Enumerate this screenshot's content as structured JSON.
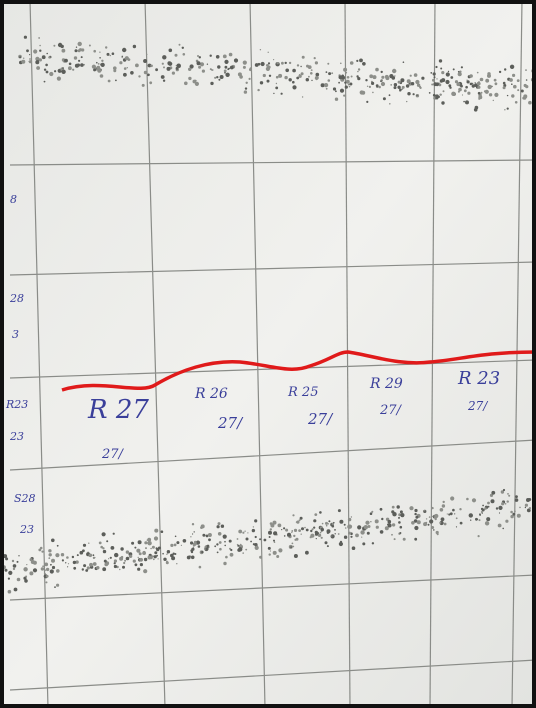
{
  "labels": [
    {
      "name": "R 27",
      "count": "27/"
    },
    {
      "name": "R 26",
      "count": "27/"
    },
    {
      "name": "R 25",
      "count": "27/"
    },
    {
      "name": "R 29",
      "count": "27/"
    },
    {
      "name": "R 23",
      "count": "27/"
    }
  ],
  "margin_notes": [
    "8",
    "28",
    "3",
    "R23",
    "23",
    "S28",
    "23"
  ]
}
